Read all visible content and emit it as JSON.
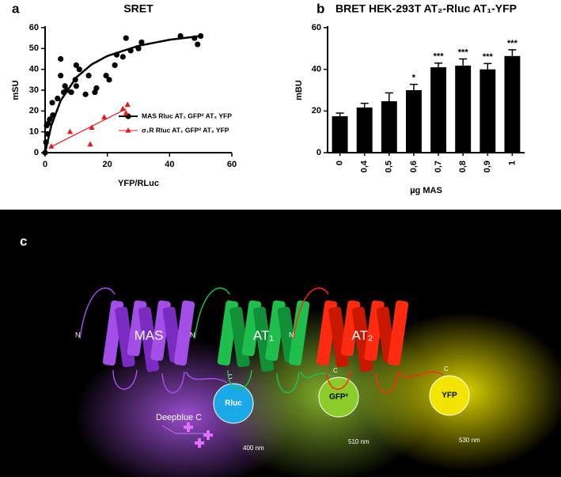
{
  "chart_data": [
    {
      "type": "scatter",
      "panel_label": "a",
      "title": "SRET",
      "x_label": "YFP/RLuc",
      "y_label": "mSU",
      "xlim": [
        0,
        60
      ],
      "xticks": [
        0,
        20,
        40,
        60
      ],
      "ylim": [
        0,
        60
      ],
      "yticks": [
        0,
        10,
        20,
        30,
        40,
        50,
        60
      ],
      "series": [
        {
          "name": "MAS Rluc AT₁ GFP² AT₂ YFP",
          "color": "#000000",
          "marker": "circle",
          "x": [
            0,
            0.3,
            0.8,
            0.5,
            1,
            1.5,
            2.5,
            2.3,
            4,
            5,
            6,
            6.4,
            5,
            7,
            8.4,
            9.7,
            10,
            10,
            11,
            13,
            14,
            16,
            16.5,
            19.6,
            20.6,
            22.4,
            23,
            25,
            26,
            27.5,
            30,
            31,
            43.5,
            48,
            49,
            50
          ],
          "values": [
            0,
            5,
            9,
            13,
            14,
            16,
            18,
            24,
            26,
            37,
            29,
            32,
            45,
            30,
            29,
            35,
            32,
            42,
            40,
            28,
            37,
            29,
            31,
            37,
            35,
            42,
            47,
            46,
            55,
            49,
            50,
            53,
            56,
            55,
            52,
            56
          ],
          "fit_x": [
            0,
            2,
            5,
            10,
            15,
            20,
            30,
            40,
            50
          ],
          "fit_values": [
            0,
            13,
            25,
            36.1,
            42.4,
            46.4,
            51.3,
            54.2,
            56
          ]
        },
        {
          "name": "σ₁R Rluc AT₁ GFP² AT₂ YFP",
          "color": "#e8171b",
          "marker": "triangle",
          "x": [
            2,
            8,
            14.5,
            15,
            19,
            25,
            26,
            26.5
          ],
          "values": [
            3,
            10,
            4,
            12,
            17,
            21,
            19,
            23
          ],
          "fit_x": [
            1.5,
            26
          ],
          "fit_values": [
            2.5,
            21
          ]
        }
      ]
    },
    {
      "type": "bar",
      "panel_label": "b",
      "title": "BRET HEK-293T AT₂-Rluc AT₁-YFP",
      "x_label": "µg MAS",
      "y_label": "mBU",
      "categories": [
        "0",
        "0,4",
        "0,5",
        "0,6",
        "0,7",
        "0,8",
        "0,9",
        "1"
      ],
      "values": [
        17.5,
        21.7,
        24.7,
        30,
        41,
        41.8,
        40,
        46.4
      ],
      "errors": [
        1.5,
        2,
        4,
        2.8,
        2,
        3.2,
        2.8,
        3
      ],
      "annotations": [
        null,
        null,
        null,
        "*",
        "***",
        "***",
        "***",
        "***"
      ],
      "color": "#000000",
      "ylim": [
        0,
        60
      ],
      "yticks": [
        0,
        20,
        40,
        60
      ]
    }
  ],
  "diagram": {
    "panel_label": "c",
    "receptors": [
      {
        "name": "MAS",
        "n_terminus": "N"
      },
      {
        "name": "AT₁",
        "n_terminus": "N"
      },
      {
        "name": "AT₂",
        "n_terminus": "N"
      }
    ],
    "tags": [
      {
        "name": "Rluc",
        "c_terminus": "C",
        "wavelength": "400 nm"
      },
      {
        "name": "GFP²",
        "c_terminus": "C",
        "wavelength": "510 nm"
      },
      {
        "name": "YFP",
        "c_terminus": "C",
        "wavelength": "530 nm"
      }
    ],
    "substrate": "Deepblue C"
  }
}
